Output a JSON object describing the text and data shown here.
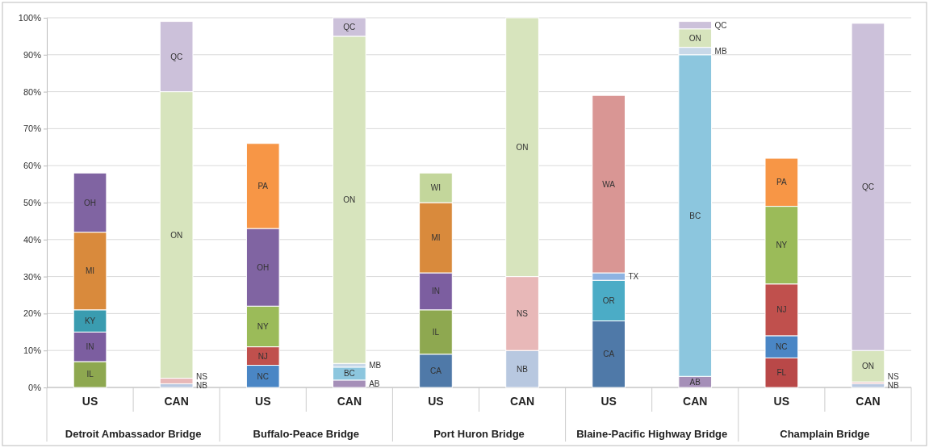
{
  "chart_data": {
    "type": "bar",
    "stacked": true,
    "grid": "y",
    "legend": false,
    "categories": [
      "US",
      "CAN",
      "US",
      "CAN",
      "US",
      "CAN",
      "US",
      "CAN",
      "US",
      "CAN"
    ],
    "annotations": [
      "Detroit Ambassador Bridge",
      "Buffalo-Peace Bridge",
      "Port Huron Bridge",
      "Blaine-Pacific Highway Bridge",
      "Champlain Bridge"
    ],
    "ylim": [
      0,
      100
    ],
    "yticks": [
      {
        "value": 0,
        "label": "0%"
      },
      {
        "value": 10,
        "label": "10%"
      },
      {
        "value": 20,
        "label": "20%"
      },
      {
        "value": 30,
        "label": "30%"
      },
      {
        "value": 40,
        "label": "40%"
      },
      {
        "value": 50,
        "label": "50%"
      },
      {
        "value": 60,
        "label": "60%"
      },
      {
        "value": 70,
        "label": "70%"
      },
      {
        "value": 80,
        "label": "80%"
      },
      {
        "value": 90,
        "label": "90%"
      },
      {
        "value": 100,
        "label": "100%"
      }
    ],
    "series": [
      {
        "name": "AB",
        "color": "#a58fb8",
        "values": [
          null,
          null,
          null,
          2,
          null,
          null,
          null,
          3,
          null,
          null
        ]
      },
      {
        "name": "BC",
        "color": "#8cc6de",
        "values": [
          null,
          null,
          null,
          3.5,
          null,
          null,
          null,
          87,
          null,
          null
        ]
      },
      {
        "name": "CA",
        "color": "#4f79a8",
        "values": [
          null,
          null,
          null,
          null,
          9,
          null,
          18,
          null,
          null,
          null
        ]
      },
      {
        "name": "FL",
        "color": "#b94848",
        "values": [
          null,
          null,
          null,
          null,
          null,
          null,
          null,
          null,
          8,
          null
        ]
      },
      {
        "name": "IL",
        "color": "#8ea850",
        "values": [
          7,
          null,
          null,
          null,
          12,
          null,
          null,
          null,
          null,
          null
        ]
      },
      {
        "name": "IN",
        "color": "#7c5ea0",
        "values": [
          8,
          null,
          null,
          null,
          10,
          null,
          null,
          null,
          null,
          null
        ]
      },
      {
        "name": "KY",
        "color": "#3a9cb0",
        "values": [
          6,
          null,
          null,
          null,
          null,
          null,
          null,
          null,
          null,
          null
        ]
      },
      {
        "name": "MB",
        "color": "#c8d8e8",
        "values": [
          null,
          null,
          null,
          1,
          null,
          null,
          null,
          2,
          null,
          null
        ]
      },
      {
        "name": "MI",
        "color": "#d98a3c",
        "values": [
          21,
          null,
          null,
          null,
          19,
          null,
          null,
          null,
          null,
          null
        ]
      },
      {
        "name": "NB",
        "color": "#b8c8e0",
        "values": [
          null,
          1,
          null,
          null,
          null,
          10,
          null,
          null,
          null,
          1
        ]
      },
      {
        "name": "NC",
        "color": "#4a86c5",
        "values": [
          null,
          null,
          6,
          null,
          null,
          null,
          null,
          null,
          6,
          null
        ]
      },
      {
        "name": "NJ",
        "color": "#c0504d",
        "values": [
          null,
          null,
          5,
          null,
          null,
          null,
          null,
          null,
          14,
          null
        ]
      },
      {
        "name": "NS",
        "color": "#e8b8b8",
        "values": [
          null,
          1.5,
          null,
          null,
          null,
          20,
          null,
          null,
          null,
          0.5
        ]
      },
      {
        "name": "NY",
        "color": "#9bbb59",
        "values": [
          null,
          null,
          11,
          null,
          null,
          null,
          null,
          null,
          21,
          null
        ]
      },
      {
        "name": "OH",
        "color": "#8064a2",
        "values": [
          16,
          null,
          21,
          null,
          null,
          null,
          null,
          null,
          null,
          null
        ]
      },
      {
        "name": "ON",
        "color": "#d7e4bd",
        "values": [
          null,
          77.5,
          null,
          88.5,
          null,
          70,
          null,
          5,
          null,
          8.5
        ]
      },
      {
        "name": "OR",
        "color": "#4bacc6",
        "values": [
          null,
          null,
          null,
          null,
          null,
          null,
          11,
          null,
          null,
          null
        ]
      },
      {
        "name": "PA",
        "color": "#f79646",
        "values": [
          null,
          null,
          23,
          null,
          null,
          null,
          null,
          null,
          13,
          null
        ]
      },
      {
        "name": "QC",
        "color": "#ccc1da",
        "values": [
          null,
          19,
          null,
          5,
          null,
          null,
          null,
          2,
          null,
          88.5
        ]
      },
      {
        "name": "TX",
        "color": "#8db3e2",
        "values": [
          null,
          null,
          null,
          null,
          null,
          null,
          2,
          null,
          null,
          null
        ]
      },
      {
        "name": "WA",
        "color": "#d99694",
        "values": [
          null,
          null,
          null,
          null,
          null,
          null,
          48,
          null,
          null,
          null
        ]
      },
      {
        "name": "WI",
        "color": "#c3d69b",
        "values": [
          null,
          null,
          null,
          null,
          8,
          null,
          null,
          null,
          null,
          null
        ]
      }
    ]
  }
}
